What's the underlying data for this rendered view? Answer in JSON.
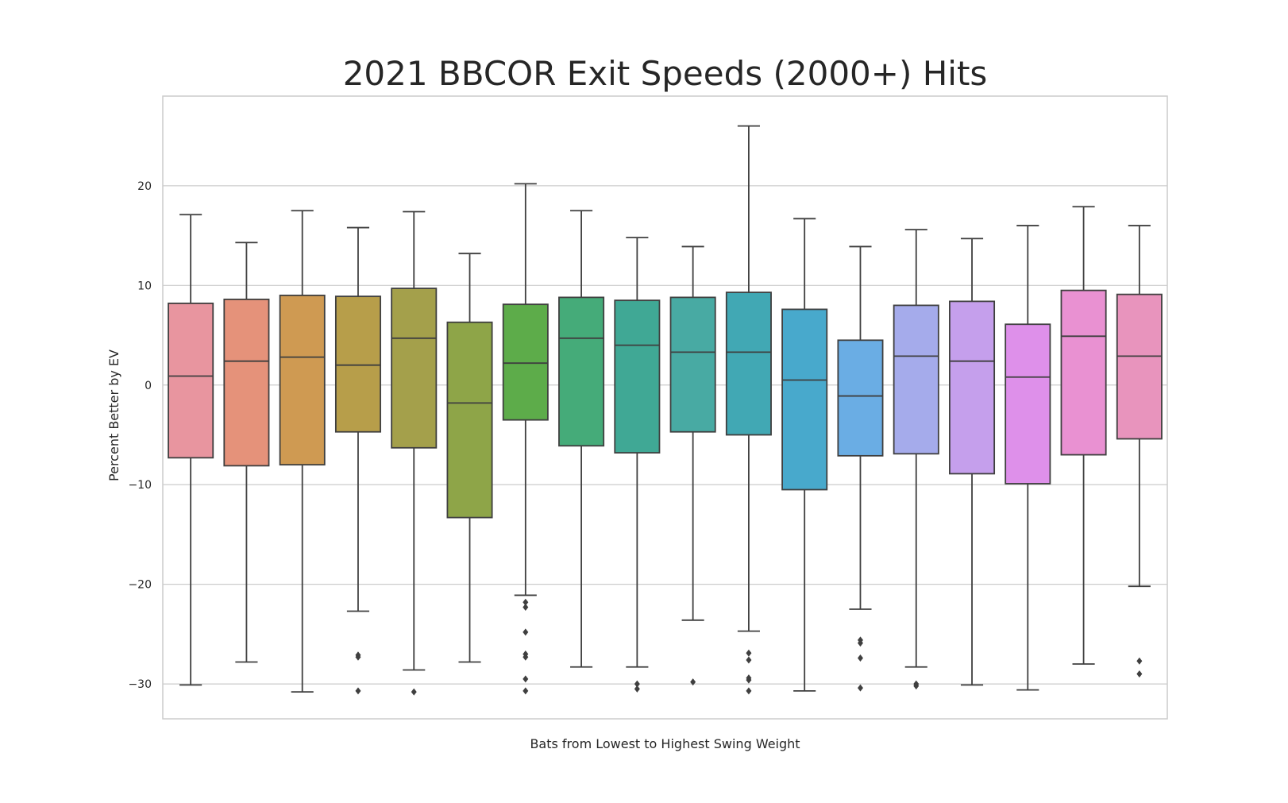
{
  "chart_data": {
    "type": "box",
    "title": "2021 BBCOR Exit Speeds (2000+) Hits",
    "xlabel": "Bats from Lowest to Highest Swing Weight",
    "ylabel": "Percent Better by EV",
    "ylim": [
      -33.5,
      29
    ],
    "yticks": [
      -30,
      -20,
      -10,
      0,
      10,
      20
    ],
    "grid": "horizontal",
    "style": "seaborn-whitegrid",
    "box_stroke_color": "#3f3f3f",
    "series": [
      {
        "color": "#e8959f",
        "whisker_low": -30.1,
        "q1": -7.3,
        "median": 0.9,
        "q3": 8.2,
        "whisker_high": 17.1,
        "outliers": []
      },
      {
        "color": "#e5927a",
        "whisker_low": -27.8,
        "q1": -8.1,
        "median": 2.4,
        "q3": 8.6,
        "whisker_high": 14.3,
        "outliers": []
      },
      {
        "color": "#cf9a52",
        "whisker_low": -30.8,
        "q1": -8.0,
        "median": 2.8,
        "q3": 9.0,
        "whisker_high": 17.5,
        "outliers": []
      },
      {
        "color": "#b79e4a",
        "whisker_low": -22.7,
        "q1": -4.7,
        "median": 2.0,
        "q3": 8.9,
        "whisker_high": 15.8,
        "outliers": [
          -27.1,
          -27.3,
          -30.7
        ]
      },
      {
        "color": "#a4a04b",
        "whisker_low": -28.6,
        "q1": -6.3,
        "median": 4.7,
        "q3": 9.7,
        "whisker_high": 17.4,
        "outliers": [
          -30.8
        ]
      },
      {
        "color": "#8ea548",
        "whisker_low": -27.8,
        "q1": -13.3,
        "median": -1.8,
        "q3": 6.3,
        "whisker_high": 13.2,
        "outliers": []
      },
      {
        "color": "#5dac4a",
        "whisker_low": -21.1,
        "q1": -3.5,
        "median": 2.2,
        "q3": 8.1,
        "whisker_high": 20.2,
        "outliers": [
          -21.8,
          -22.3,
          -24.8,
          -27.0,
          -27.3,
          -29.5,
          -30.7
        ]
      },
      {
        "color": "#45ab79",
        "whisker_low": -28.3,
        "q1": -6.1,
        "median": 4.7,
        "q3": 8.8,
        "whisker_high": 17.5,
        "outliers": []
      },
      {
        "color": "#40a895",
        "whisker_low": -28.3,
        "q1": -6.8,
        "median": 4.0,
        "q3": 8.5,
        "whisker_high": 14.8,
        "outliers": [
          -30.0,
          -30.5
        ]
      },
      {
        "color": "#48aaa3",
        "whisker_low": -23.6,
        "q1": -4.7,
        "median": 3.3,
        "q3": 8.8,
        "whisker_high": 13.9,
        "outliers": [
          -29.8
        ]
      },
      {
        "color": "#41a8b4",
        "whisker_low": -24.7,
        "q1": -5.0,
        "median": 3.3,
        "q3": 9.3,
        "whisker_high": 26.0,
        "outliers": [
          -26.9,
          -27.6,
          -29.4,
          -29.6,
          -30.7
        ]
      },
      {
        "color": "#48a9cc",
        "whisker_low": -30.7,
        "q1": -10.5,
        "median": 0.5,
        "q3": 7.6,
        "whisker_high": 16.7,
        "outliers": []
      },
      {
        "color": "#6aade4",
        "whisker_low": -22.5,
        "q1": -7.1,
        "median": -1.1,
        "q3": 4.5,
        "whisker_high": 13.9,
        "outliers": [
          -25.6,
          -25.9,
          -27.4,
          -30.4
        ]
      },
      {
        "color": "#a5abeb",
        "whisker_low": -28.3,
        "q1": -6.9,
        "median": 2.9,
        "q3": 8.0,
        "whisker_high": 15.6,
        "outliers": [
          -30.0,
          -30.2
        ]
      },
      {
        "color": "#c59fec",
        "whisker_low": -30.1,
        "q1": -8.9,
        "median": 2.4,
        "q3": 8.4,
        "whisker_high": 14.7,
        "outliers": []
      },
      {
        "color": "#de90ea",
        "whisker_low": -30.6,
        "q1": -9.9,
        "median": 0.8,
        "q3": 6.1,
        "whisker_high": 16.0,
        "outliers": []
      },
      {
        "color": "#e991d2",
        "whisker_low": -28.0,
        "q1": -7.0,
        "median": 4.9,
        "q3": 9.5,
        "whisker_high": 17.9,
        "outliers": []
      },
      {
        "color": "#e894bd",
        "whisker_low": -20.2,
        "q1": -5.4,
        "median": 2.9,
        "q3": 9.1,
        "whisker_high": 16.0,
        "outliers": [
          -27.7,
          -29.0
        ]
      }
    ]
  }
}
